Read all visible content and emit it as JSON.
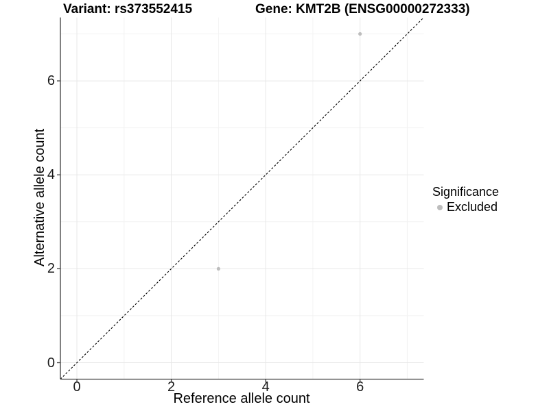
{
  "titles": {
    "variant": "Variant: rs373552415",
    "gene": "Gene: KMT2B (ENSG00000272333)"
  },
  "legend": {
    "title": "Significance",
    "items": [
      {
        "label": "Excluded",
        "color": "#bdbdbd"
      }
    ]
  },
  "colors": {
    "point": "#bdbdbd",
    "grid_major": "#e7e7e7",
    "grid_minor": "#f2f2f2",
    "axis": "#3c3c3c",
    "tick_text": "#1a1a1a",
    "identity_line": "#000000"
  },
  "chart_data": {
    "type": "scatter",
    "title": "Variant: rs373552415 — Gene: KMT2B (ENSG00000272333)",
    "xlabel": "Reference allele count",
    "ylabel": "Alternative allele count",
    "xlim": [
      -0.35,
      7.35
    ],
    "ylim": [
      -0.35,
      7.35
    ],
    "x_ticks": [
      0,
      2,
      4,
      6
    ],
    "y_ticks": [
      0,
      2,
      4,
      6
    ],
    "x_minor_gridlines": [
      1,
      3,
      5,
      7
    ],
    "y_minor_gridlines": [
      1,
      3,
      5,
      7
    ],
    "grid": "major+minor",
    "legend_position": "right",
    "legend_title": "Significance",
    "series": [
      {
        "name": "Excluded",
        "color": "#bdbdbd",
        "points": [
          {
            "x": 3,
            "y": 2
          },
          {
            "x": 6,
            "y": 7
          }
        ]
      }
    ],
    "reference_line": {
      "type": "identity y=x",
      "style": "dashed",
      "color": "#000000"
    }
  }
}
